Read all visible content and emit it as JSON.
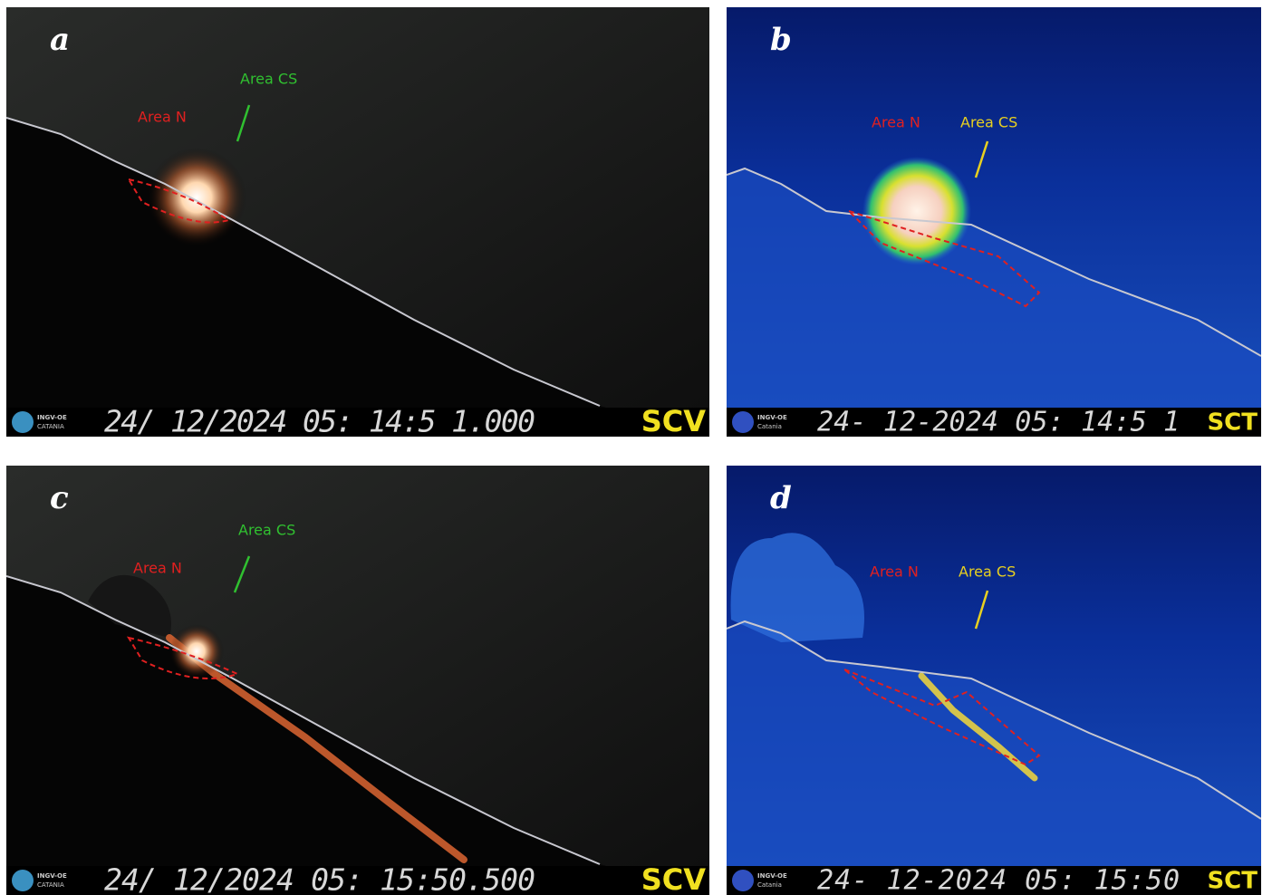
{
  "panels": [
    {
      "label": "a",
      "area_n": "Area N",
      "area_cs": "Area CS",
      "logo_top": "INGV-OE",
      "logo_bottom": "CATANIA",
      "timestamp": "24/ 12/2024 05: 14:5 1.000",
      "camera": "SCV"
    },
    {
      "label": "b",
      "area_n": "Area N",
      "area_cs": "Area CS",
      "logo_top": "INGV-OE",
      "logo_bottom": "Catania",
      "timestamp": "24- 12-2024 05: 14:5 1",
      "camera": "SCT"
    },
    {
      "label": "c",
      "area_n": "Area N",
      "area_cs": "Area CS",
      "logo_top": "INGV-OE",
      "logo_bottom": "CATANIA",
      "timestamp": "24/ 12/2024 05: 15:50.500",
      "camera": "SCV"
    },
    {
      "label": "d",
      "area_n": "Area N",
      "area_cs": "Area CS",
      "logo_top": "INGV-OE",
      "logo_bottom": "Catania",
      "timestamp": "24- 12-2024 05: 15:50",
      "camera": "SCT"
    }
  ]
}
